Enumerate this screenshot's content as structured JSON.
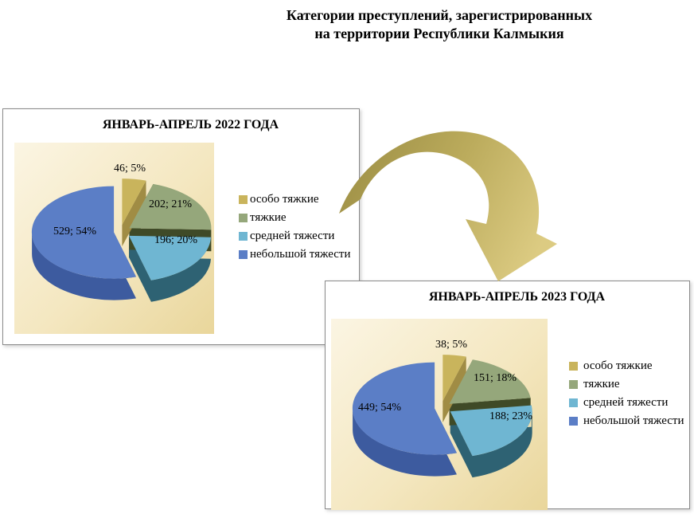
{
  "main_title": {
    "line1": "Категории преступлений, зарегистрированных",
    "line2": "на территории Республики Калмыкия"
  },
  "legend_labels": [
    "особо тяжкие",
    "тяжкие",
    "средней тяжести",
    "небольшой тяжести"
  ],
  "palette": {
    "especially_grave": "#C9B45C",
    "grave": "#95A77B",
    "medium_gravity": "#6FB6D2",
    "minor_gravity": "#5B7EC6"
  },
  "arrow": {
    "icon": "curved-arrow-down-right",
    "color_from": "#9D8F45",
    "color_to": "#DCCB82"
  },
  "chart_data": [
    {
      "type": "pie",
      "title": "ЯНВАРЬ-АПРЕЛЬ 2022 ГОДА",
      "effect": "3d-exploded",
      "legend_position": "right",
      "categories": [
        "особо тяжкие",
        "тяжкие",
        "средней тяжести",
        "небольшой тяжести"
      ],
      "values": [
        46,
        202,
        196,
        529
      ],
      "percents": [
        5,
        21,
        20,
        54
      ],
      "labels": [
        "46; 5%",
        "202; 21%",
        "196; 20%",
        "529; 54%"
      ],
      "colors": [
        "#C9B45C",
        "#95A77B",
        "#6FB6D2",
        "#5B7EC6"
      ],
      "side_colors": [
        "#A08C44",
        "#3F4A27",
        "#2E6273",
        "#3D5B9F"
      ]
    },
    {
      "type": "pie",
      "title": "ЯНВАРЬ-АПРЕЛЬ 2023 ГОДА",
      "effect": "3d-exploded",
      "legend_position": "right",
      "categories": [
        "особо тяжкие",
        "тяжкие",
        "средней тяжести",
        "небольшой тяжести"
      ],
      "values": [
        38,
        151,
        188,
        449
      ],
      "percents": [
        5,
        18,
        23,
        54
      ],
      "labels": [
        "38; 5%",
        "151; 18%",
        "188; 23%",
        "449; 54%"
      ],
      "colors": [
        "#C9B45C",
        "#95A77B",
        "#6FB6D2",
        "#5B7EC6"
      ],
      "side_colors": [
        "#A08C44",
        "#3F4A27",
        "#2E6273",
        "#3D5B9F"
      ]
    }
  ]
}
